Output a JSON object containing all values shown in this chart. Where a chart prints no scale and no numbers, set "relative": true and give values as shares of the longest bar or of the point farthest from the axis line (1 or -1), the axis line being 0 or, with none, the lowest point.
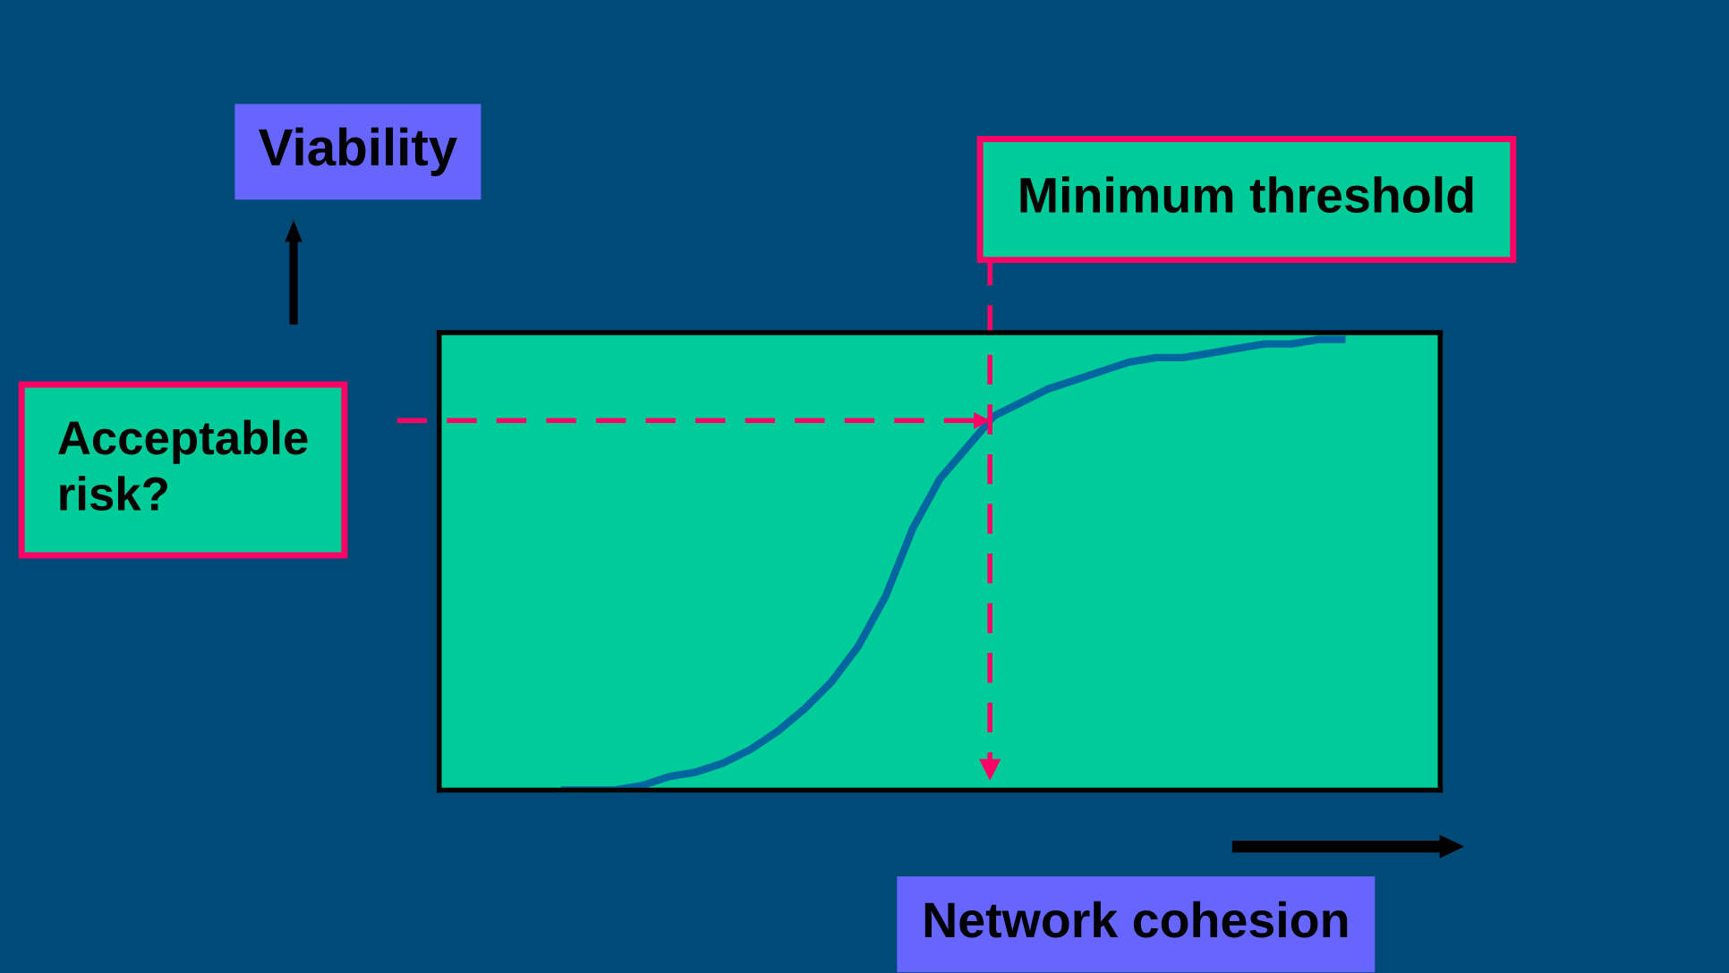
{
  "chart_data": {
    "type": "line",
    "relative": true,
    "xlabel": "Network cohesion",
    "ylabel": "Viability",
    "categories": [
      null,
      null,
      null,
      null,
      null,
      null,
      null,
      null,
      null,
      null,
      null,
      null,
      null,
      null,
      null,
      null,
      null,
      null,
      null,
      null,
      null,
      null,
      null,
      null,
      null,
      null,
      null,
      null,
      null,
      null,
      null,
      null,
      null,
      null,
      null,
      null,
      null
    ],
    "series": [
      {
        "color": "#0066a0",
        "values": [
          null,
          null,
          null,
          null,
          0.0,
          0.0,
          0.0,
          0.01,
          0.03,
          0.04,
          0.06,
          0.09,
          0.13,
          0.18,
          0.24,
          0.32,
          0.43,
          0.58,
          0.69,
          0.76,
          0.83,
          0.86,
          0.89,
          0.91,
          0.93,
          0.95,
          0.96,
          0.96,
          0.97,
          0.98,
          0.99,
          0.99,
          1.0,
          1.0,
          null,
          null,
          null
        ]
      }
    ],
    "ref_lines": [
      {
        "axis": "y",
        "value": 0.82,
        "label": "Acceptable\nrisk?",
        "color": "#ff0066",
        "line_style": "dashed"
      }
    ],
    "annotations": [
      "Minimum threshold"
    ]
  }
}
